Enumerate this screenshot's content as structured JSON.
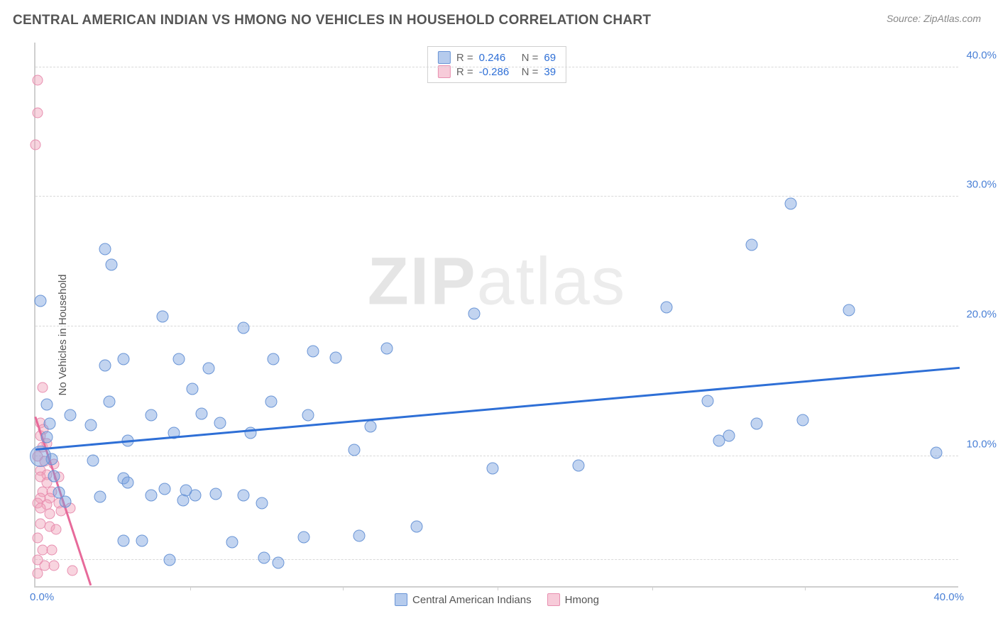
{
  "header": {
    "title": "CENTRAL AMERICAN INDIAN VS HMONG NO VEHICLES IN HOUSEHOLD CORRELATION CHART",
    "source_prefix": "Source: ",
    "source_name": "ZipAtlas.com"
  },
  "ylabel": "No Vehicles in Household",
  "watermark": {
    "zip": "ZIP",
    "atlas": "atlas"
  },
  "axes": {
    "xlim": [
      0,
      40
    ],
    "ylim": [
      0,
      42
    ],
    "x_ticks_labeled": [
      {
        "v": 0,
        "label": "0.0%"
      },
      {
        "v": 40,
        "label": "40.0%"
      }
    ],
    "y_ticks": [
      {
        "v": 10,
        "label": "10.0%"
      },
      {
        "v": 20,
        "label": "20.0%"
      },
      {
        "v": 30,
        "label": "30.0%"
      },
      {
        "v": 40,
        "label": "40.0%"
      }
    ],
    "y_gridlines": [
      2,
      10,
      20,
      30,
      40
    ],
    "x_minor_ticks": [
      6.7,
      13.3,
      20,
      26.7,
      33.3
    ]
  },
  "legend_stats": {
    "rows": [
      {
        "swatch": "blue",
        "r_label": "R =",
        "r_val": "0.246",
        "n_label": "N =",
        "n_val": "69"
      },
      {
        "swatch": "pink",
        "r_label": "R =",
        "r_val": "-0.286",
        "n_label": "N =",
        "n_val": "39"
      }
    ]
  },
  "bottom_legend": {
    "items": [
      {
        "swatch": "blue",
        "label": "Central American Indians"
      },
      {
        "swatch": "pink",
        "label": "Hmong"
      }
    ]
  },
  "series": {
    "blue": {
      "color": "#6a95d6",
      "fill": "rgba(120,160,222,0.45)",
      "marker_size": 17,
      "trend": {
        "x1": 0,
        "y1": 10.5,
        "x2": 40,
        "y2": 16.8,
        "color": "#2e6fd6",
        "width": 2.5
      },
      "points": [
        {
          "x": 0.2,
          "y": 22
        },
        {
          "x": 0.5,
          "y": 14
        },
        {
          "x": 0.5,
          "y": 11.5
        },
        {
          "x": 0.7,
          "y": 9.8
        },
        {
          "x": 0.8,
          "y": 8.5
        },
        {
          "x": 4.0,
          "y": 11.2
        },
        {
          "x": 5.0,
          "y": 7.0
        },
        {
          "x": 5.5,
          "y": 20.8
        },
        {
          "x": 3.8,
          "y": 3.5
        },
        {
          "x": 3.0,
          "y": 26.0
        },
        {
          "x": 3.3,
          "y": 24.8
        },
        {
          "x": 2.5,
          "y": 9.7
        },
        {
          "x": 5.8,
          "y": 2.0
        },
        {
          "x": 3.8,
          "y": 17.5
        },
        {
          "x": 3.2,
          "y": 14.2
        },
        {
          "x": 2.4,
          "y": 12.4
        },
        {
          "x": 3.0,
          "y": 17.0
        },
        {
          "x": 3.8,
          "y": 8.3
        },
        {
          "x": 4.0,
          "y": 8.0
        },
        {
          "x": 5.0,
          "y": 13.2
        },
        {
          "x": 5.6,
          "y": 7.5
        },
        {
          "x": 6.5,
          "y": 7.4
        },
        {
          "x": 6.0,
          "y": 11.8
        },
        {
          "x": 6.4,
          "y": 6.6
        },
        {
          "x": 6.2,
          "y": 17.5
        },
        {
          "x": 6.8,
          "y": 15.2
        },
        {
          "x": 7.2,
          "y": 13.3
        },
        {
          "x": 7.5,
          "y": 16.8
        },
        {
          "x": 7.8,
          "y": 7.1
        },
        {
          "x": 8.0,
          "y": 12.6
        },
        {
          "x": 8.5,
          "y": 3.4
        },
        {
          "x": 9.0,
          "y": 19.9
        },
        {
          "x": 9.0,
          "y": 7.0
        },
        {
          "x": 9.9,
          "y": 2.2
        },
        {
          "x": 9.3,
          "y": 11.8
        },
        {
          "x": 9.8,
          "y": 6.4
        },
        {
          "x": 10.2,
          "y": 14.2
        },
        {
          "x": 10.3,
          "y": 17.5
        },
        {
          "x": 10.5,
          "y": 1.8
        },
        {
          "x": 11.6,
          "y": 3.8
        },
        {
          "x": 11.8,
          "y": 13.2
        },
        {
          "x": 12.0,
          "y": 18.1
        },
        {
          "x": 13.0,
          "y": 17.6
        },
        {
          "x": 13.8,
          "y": 10.5
        },
        {
          "x": 14.0,
          "y": 3.9
        },
        {
          "x": 14.5,
          "y": 12.3
        },
        {
          "x": 15.2,
          "y": 18.3
        },
        {
          "x": 16.5,
          "y": 4.6
        },
        {
          "x": 19.0,
          "y": 21.0
        },
        {
          "x": 19.8,
          "y": 9.1
        },
        {
          "x": 23.5,
          "y": 9.3
        },
        {
          "x": 27.3,
          "y": 21.5
        },
        {
          "x": 29.1,
          "y": 14.3
        },
        {
          "x": 30.0,
          "y": 11.6
        },
        {
          "x": 29.6,
          "y": 11.2
        },
        {
          "x": 31.2,
          "y": 12.5
        },
        {
          "x": 31.0,
          "y": 26.3
        },
        {
          "x": 32.7,
          "y": 29.5
        },
        {
          "x": 33.2,
          "y": 12.8
        },
        {
          "x": 35.2,
          "y": 21.3
        },
        {
          "x": 39.0,
          "y": 10.3
        },
        {
          "x": 2.8,
          "y": 6.9
        },
        {
          "x": 4.6,
          "y": 3.5
        },
        {
          "x": 6.9,
          "y": 7.0
        },
        {
          "x": 1.3,
          "y": 6.5
        },
        {
          "x": 0.2,
          "y": 10.0,
          "size": 30
        },
        {
          "x": 0.6,
          "y": 12.5
        },
        {
          "x": 1.0,
          "y": 7.2
        },
        {
          "x": 1.5,
          "y": 13.2
        }
      ]
    },
    "pink": {
      "color": "#e88fb0",
      "fill": "rgba(240,160,185,0.45)",
      "marker_size": 15,
      "trend": {
        "x1": 0,
        "y1": 13.0,
        "x2": 2.4,
        "y2": 0,
        "color": "#e76a9a",
        "width": 2.5
      },
      "points": [
        {
          "x": 0.1,
          "y": 39.0
        },
        {
          "x": 0.1,
          "y": 36.5
        },
        {
          "x": 0.0,
          "y": 34.0
        },
        {
          "x": 0.3,
          "y": 15.3
        },
        {
          "x": 0.2,
          "y": 12.6
        },
        {
          "x": 0.35,
          "y": 12.1
        },
        {
          "x": 0.2,
          "y": 11.6
        },
        {
          "x": 0.3,
          "y": 10.7
        },
        {
          "x": 0.5,
          "y": 11.0
        },
        {
          "x": 0.1,
          "y": 10.0
        },
        {
          "x": 0.4,
          "y": 9.6
        },
        {
          "x": 0.2,
          "y": 8.9
        },
        {
          "x": 0.5,
          "y": 8.6
        },
        {
          "x": 0.2,
          "y": 8.4
        },
        {
          "x": 0.5,
          "y": 8.0
        },
        {
          "x": 0.3,
          "y": 7.3
        },
        {
          "x": 0.7,
          "y": 7.3
        },
        {
          "x": 0.2,
          "y": 6.8
        },
        {
          "x": 0.6,
          "y": 6.8
        },
        {
          "x": 0.1,
          "y": 6.4
        },
        {
          "x": 0.5,
          "y": 6.3
        },
        {
          "x": 1.0,
          "y": 6.4
        },
        {
          "x": 0.2,
          "y": 6.0
        },
        {
          "x": 0.6,
          "y": 5.6
        },
        {
          "x": 1.1,
          "y": 5.8
        },
        {
          "x": 1.5,
          "y": 6.0
        },
        {
          "x": 0.2,
          "y": 4.8
        },
        {
          "x": 0.6,
          "y": 4.6
        },
        {
          "x": 0.9,
          "y": 4.4
        },
        {
          "x": 0.1,
          "y": 3.7
        },
        {
          "x": 0.3,
          "y": 2.8
        },
        {
          "x": 0.7,
          "y": 2.8
        },
        {
          "x": 0.1,
          "y": 2.0
        },
        {
          "x": 0.4,
          "y": 1.6
        },
        {
          "x": 0.8,
          "y": 1.6
        },
        {
          "x": 0.1,
          "y": 1.0
        },
        {
          "x": 1.6,
          "y": 1.2
        },
        {
          "x": 1.0,
          "y": 8.4
        },
        {
          "x": 0.8,
          "y": 9.4
        }
      ]
    }
  }
}
